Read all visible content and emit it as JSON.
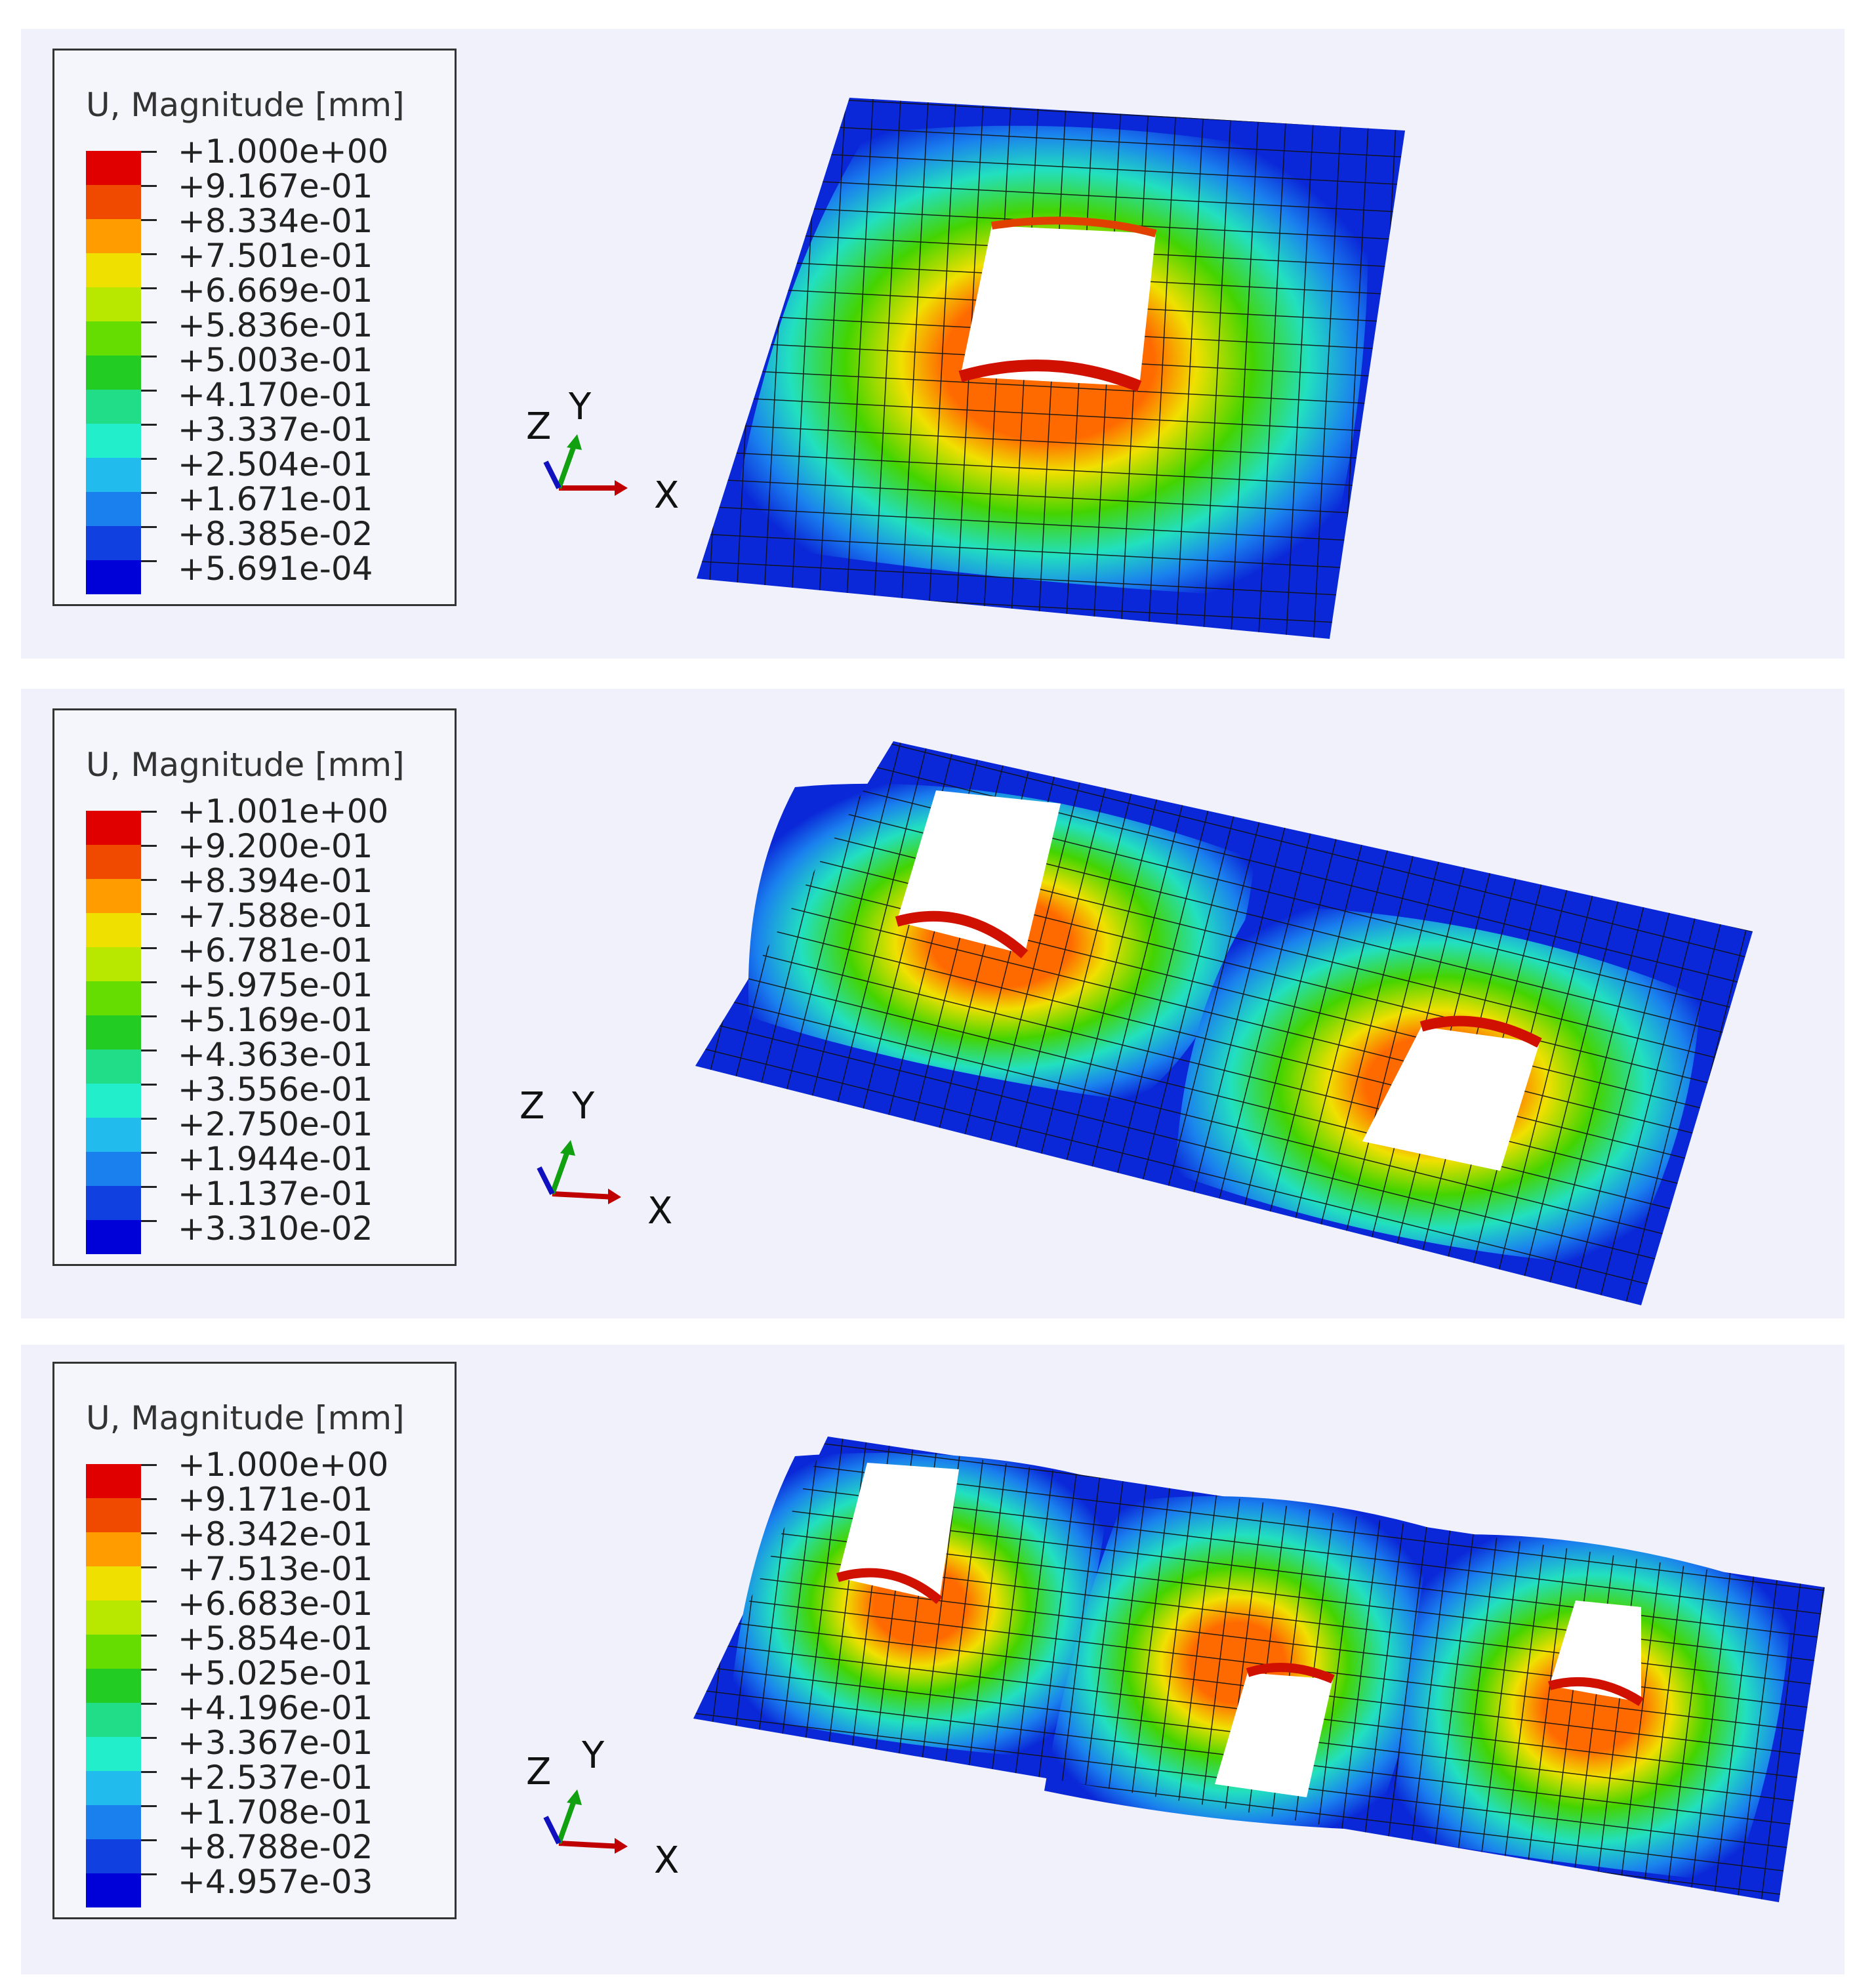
{
  "legends": [
    {
      "title": "U, Magnitude [mm]",
      "values": [
        "+1.000e+00",
        "+9.167e-01",
        "+8.334e-01",
        "+7.501e-01",
        "+6.669e-01",
        "+5.836e-01",
        "+5.003e-01",
        "+4.170e-01",
        "+3.337e-01",
        "+2.504e-01",
        "+1.671e-01",
        "+8.385e-02",
        "+5.691e-04"
      ]
    },
    {
      "title": "U, Magnitude [mm]",
      "values": [
        "+1.001e+00",
        "+9.200e-01",
        "+8.394e-01",
        "+7.588e-01",
        "+6.781e-01",
        "+5.975e-01",
        "+5.169e-01",
        "+4.363e-01",
        "+3.556e-01",
        "+2.750e-01",
        "+1.944e-01",
        "+1.137e-01",
        "+3.310e-02"
      ]
    },
    {
      "title": "U, Magnitude [mm]",
      "values": [
        "+1.000e+00",
        "+9.171e-01",
        "+8.342e-01",
        "+7.513e-01",
        "+6.683e-01",
        "+5.854e-01",
        "+5.025e-01",
        "+4.196e-01",
        "+3.367e-01",
        "+2.537e-01",
        "+1.708e-01",
        "+8.788e-02",
        "+4.957e-03"
      ]
    }
  ],
  "colormap": [
    "#e00000",
    "#f04a00",
    "#ff9c00",
    "#f0e000",
    "#b8e800",
    "#66dd00",
    "#22cc22",
    "#22dd88",
    "#22eecc",
    "#22bbee",
    "#1a80ee",
    "#1040e0",
    "#0000d8"
  ],
  "triad": {
    "x": "X",
    "y": "Y",
    "z": "Z"
  },
  "colors": {
    "x_arrow": "#c00000",
    "y_arrow": "#10a010",
    "z_arrow": "#1010c0",
    "mesh_line": "#111111",
    "plate_edge": "#0a28d8"
  }
}
